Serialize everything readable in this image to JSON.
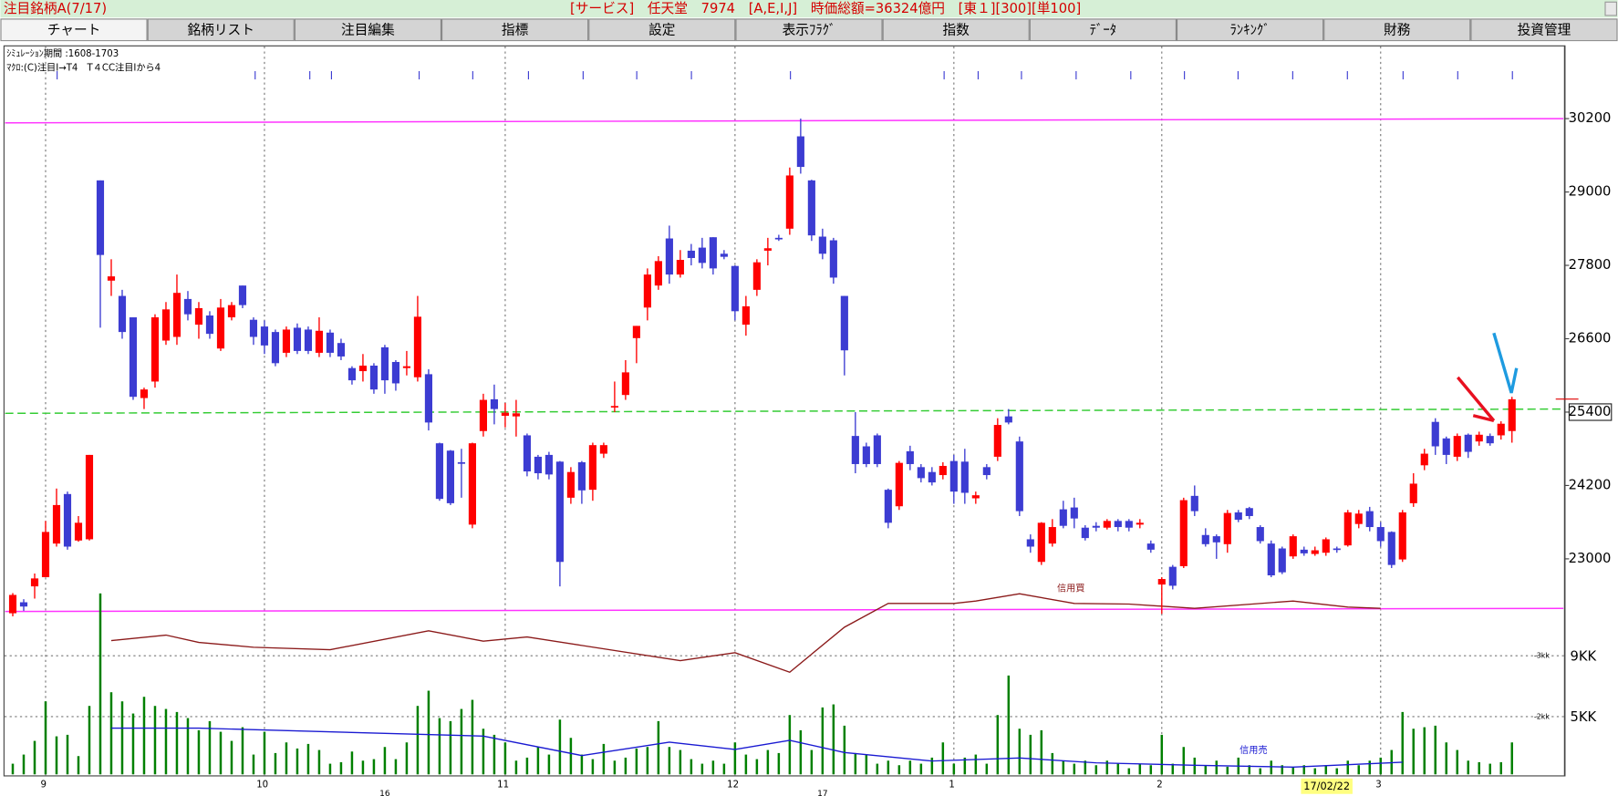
{
  "header": {
    "title": "注目銘柄A(7/17)",
    "info": "[サービス]　任天堂　7974　[A,E,I,J]　時価総額=36324億円　[東１][300][単100]"
  },
  "tabs": [
    "チャート",
    "銘柄リスト",
    "注目編集",
    "指標",
    "設定",
    "表示ﾌﾗｸﾞ",
    "指数",
    "ﾃﾞｰﾀ",
    "ﾗﾝｷﾝｸﾞ",
    "財務",
    "投資管理"
  ],
  "chart_data": {
    "type": "candlestick",
    "notes": [
      "ｼﾐｭﾚｰｼｮﾝ期間 :1608-1703",
      "ﾏｸﾛ:(C)注目I→T4　T４CC注目Iから4"
    ],
    "open": [
      22110,
      22290,
      22550,
      22700,
      23250,
      24060,
      23300,
      23320,
      29190,
      27550,
      27300,
      26950,
      25630,
      25900,
      26570,
      26630,
      27250,
      26830,
      26980,
      26440,
      26950,
      27470,
      26910,
      26800,
      26710,
      26370,
      26780,
      26750,
      26370,
      26700,
      26530,
      26120,
      26070,
      26160,
      26460,
      26220,
      26120,
      25970,
      26020,
      24890,
      24770,
      24580,
      23560,
      25090,
      25610,
      25340,
      25330,
      25020,
      24670,
      24700,
      24590,
      24000,
      24580,
      24130,
      24720,
      25480,
      25680,
      26610,
      27110,
      27470,
      28240,
      27650,
      28040,
      28090,
      28260,
      27990,
      27790,
      26830,
      27400,
      28040,
      28250,
      28400,
      29910,
      29190,
      28270,
      28210,
      27300,
      25010,
      24840,
      25020,
      24130,
      23860,
      24760,
      24500,
      24420,
      24370,
      24600,
      24590,
      23990,
      24500,
      24670,
      25330,
      24920,
      23320,
      22950,
      23250,
      23810,
      23840,
      23510,
      23540,
      23510,
      23620,
      23620,
      23560,
      23250,
      22580,
      22870,
      22880,
      24030,
      23390,
      23370,
      23240,
      23760,
      23830,
      23520,
      23250,
      23170,
      23040,
      23150,
      23080,
      23100,
      23170,
      23220,
      23570,
      23780,
      23520,
      23440,
      22990,
      23910,
      24530,
      25240,
      24970,
      24670,
      25030,
      24920,
      25010,
      25020,
      25090
    ],
    "high": [
      22440,
      22340,
      22760,
      23620,
      24150,
      24100,
      23700,
      24700,
      29190,
      27900,
      27400,
      26950,
      25800,
      27000,
      27200,
      27650,
      27380,
      27200,
      27050,
      27250,
      27200,
      27470,
      26950,
      26900,
      26750,
      26800,
      26850,
      26800,
      26950,
      26750,
      26600,
      26150,
      26350,
      26200,
      26500,
      26250,
      26400,
      27300,
      26100,
      24900,
      24780,
      24800,
      24900,
      25700,
      25850,
      25550,
      25600,
      25050,
      24700,
      24750,
      24600,
      24500,
      24600,
      24900,
      24900,
      25900,
      26250,
      26810,
      27750,
      27950,
      28450,
      28050,
      28150,
      28250,
      28260,
      28050,
      27800,
      27300,
      27900,
      28250,
      28300,
      29400,
      30200,
      29200,
      28400,
      28250,
      27300,
      25400,
      24900,
      25050,
      24150,
      24600,
      24850,
      24550,
      24500,
      24580,
      24700,
      24800,
      24100,
      24550,
      25300,
      25450,
      25000,
      23400,
      23600,
      23650,
      23950,
      24000,
      23550,
      23600,
      23650,
      23650,
      23650,
      23650,
      23300,
      22700,
      22900,
      24000,
      24200,
      23500,
      23400,
      23800,
      23800,
      23850,
      23550,
      23300,
      23200,
      23400,
      23200,
      23200,
      23350,
      23200,
      23800,
      23800,
      23850,
      23600,
      23450,
      23800,
      24400,
      24800,
      25300,
      25000,
      25050,
      25050,
      25080,
      25050,
      25250,
      25650
    ],
    "low": [
      22060,
      22150,
      22350,
      22700,
      23200,
      23150,
      23280,
      23300,
      26780,
      27300,
      26600,
      25600,
      25450,
      25800,
      26500,
      26500,
      26900,
      26600,
      26600,
      26400,
      26900,
      27100,
      26500,
      26350,
      26150,
      26300,
      26350,
      26350,
      26300,
      26300,
      26250,
      25850,
      25900,
      25700,
      25700,
      25750,
      26000,
      25900,
      25100,
      23950,
      23880,
      24000,
      23500,
      25000,
      25200,
      25150,
      25000,
      24350,
      24300,
      24300,
      22550,
      23900,
      23900,
      23950,
      24650,
      25400,
      25600,
      26200,
      26900,
      27400,
      27500,
      27600,
      27800,
      27750,
      27650,
      27900,
      26900,
      26650,
      27300,
      27800,
      28200,
      28300,
      29300,
      28200,
      27900,
      27500,
      26000,
      24400,
      24500,
      24500,
      23500,
      23800,
      24450,
      24250,
      24200,
      24300,
      23900,
      23900,
      23900,
      24300,
      24600,
      25200,
      23700,
      23100,
      22900,
      23200,
      23500,
      23500,
      23300,
      23450,
      23480,
      23450,
      23450,
      23500,
      23100,
      22100,
      22500,
      22850,
      23700,
      23200,
      23000,
      23100,
      23600,
      23650,
      23250,
      22700,
      22750,
      23000,
      23050,
      23050,
      23050,
      23100,
      23200,
      23500,
      23450,
      23200,
      22850,
      22950,
      23850,
      24450,
      24700,
      24550,
      24600,
      24650,
      24850,
      24850,
      24950,
      24900
    ],
    "close": [
      22410,
      22220,
      22680,
      23440,
      23880,
      23200,
      23590,
      24700,
      27970,
      27620,
      26710,
      25650,
      25770,
      26950,
      27080,
      27350,
      27000,
      27100,
      26680,
      27110,
      27150,
      27150,
      26630,
      26490,
      26200,
      26750,
      26400,
      26400,
      26730,
      26370,
      26310,
      25920,
      26160,
      25770,
      25920,
      25870,
      26150,
      26960,
      25230,
      23980,
      23910,
      24560,
      24890,
      25600,
      25450,
      25390,
      25380,
      24430,
      24400,
      24380,
      22950,
      24420,
      24120,
      24860,
      24860,
      25500,
      26050,
      26810,
      27650,
      27870,
      27650,
      27890,
      27920,
      27840,
      27750,
      27940,
      27050,
      27130,
      27850,
      28080,
      28240,
      29270,
      29410,
      28290,
      27990,
      27600,
      26410,
      24550,
      24550,
      24550,
      23590,
      24570,
      24550,
      24320,
      24250,
      24520,
      24100,
      24080,
      24040,
      24370,
      25190,
      25230,
      23780,
      23200,
      23590,
      23520,
      23540,
      23660,
      23340,
      23510,
      23620,
      23520,
      23510,
      23590,
      23150,
      22670,
      22560,
      23960,
      23780,
      23240,
      23270,
      23750,
      23640,
      23700,
      23290,
      22730,
      22780,
      23370,
      23090,
      23140,
      23320,
      23150,
      23760,
      23740,
      23520,
      23290,
      22900,
      23760,
      24230,
      24720,
      24840,
      24700,
      25010,
      24750,
      25030,
      24890,
      25210,
      25610
    ],
    "up_color": "#ff0000",
    "down_color": "#3c3cd2",
    "ylim": [
      21000,
      31000
    ],
    "yticks": [
      23000,
      24200,
      25400,
      26600,
      27800,
      29000,
      30200
    ],
    "xticks": [
      {
        "value": 3,
        "label": "9"
      },
      {
        "value": 23,
        "label": "10"
      },
      {
        "value": 45,
        "label": "11"
      },
      {
        "value": 66,
        "label": "12"
      },
      {
        "value": 86,
        "label": "1"
      },
      {
        "value": 105,
        "label": "2"
      },
      {
        "value": 125,
        "label": "3"
      }
    ],
    "year_ticks": [
      {
        "value": 34,
        "label": "16"
      },
      {
        "value": 74,
        "label": "17"
      }
    ],
    "cursor_date": "17/02/22",
    "levels": [
      {
        "color": "#ff33ff",
        "x": [
          -0.7,
          141.7
        ],
        "values": [
          30130,
          30200
        ]
      },
      {
        "color": "#ff33ff",
        "x": [
          -0.7,
          141.7
        ],
        "values": [
          22140,
          22190
        ]
      },
      {
        "color": "#33cc33",
        "dashed": true,
        "x": [
          -0.7,
          141.7
        ],
        "values": [
          25380,
          25450
        ]
      }
    ],
    "volume": {
      "color": "#008000",
      "ylim": [
        1.2,
        14
      ],
      "yticks": [
        {
          "value": 9,
          "label": "9KK"
        },
        {
          "value": 5,
          "label": "5KK"
        }
      ],
      "values": [
        1.9,
        2.5,
        3.4,
        6.0,
        3.7,
        3.8,
        2.4,
        5.7,
        13.1,
        6.6,
        6.0,
        5.2,
        6.3,
        5.7,
        5.5,
        5.3,
        4.9,
        4.1,
        4.7,
        4.0,
        3.4,
        4.3,
        2.5,
        4.0,
        2.6,
        3.3,
        2.9,
        3.2,
        2.8,
        1.9,
        2.0,
        2.7,
        2.1,
        2.2,
        3.0,
        2.2,
        3.3,
        5.7,
        6.7,
        4.9,
        4.7,
        5.5,
        6.1,
        4.2,
        3.8,
        3.3,
        2.1,
        2.3,
        3.0,
        2.5,
        4.8,
        3.6,
        2.5,
        2.2,
        3.2,
        2.1,
        2.3,
        2.9,
        3.0,
        4.7,
        3.0,
        2.8,
        2.2,
        1.9,
        2.1,
        1.9,
        3.3,
        2.5,
        2.2,
        2.8,
        2.6,
        5.1,
        4.1,
        2.8,
        5.6,
        5.8,
        4.4,
        2.6,
        2.5,
        1.9,
        2.1,
        1.8,
        2.1,
        1.9,
        2.3,
        3.3,
        1.9,
        2.3,
        2.5,
        1.9,
        5.1,
        7.7,
        4.2,
        3.8,
        4.1,
        2.6,
        2.1,
        1.9,
        2.1,
        1.8,
        2.1,
        1.9,
        1.6,
        1.9,
        1.8,
        3.8,
        1.9,
        3.0,
        2.3,
        1.8,
        2.1,
        1.7,
        2.3,
        1.8,
        1.6,
        2.1,
        1.8,
        1.7,
        1.8,
        1.6,
        1.8,
        1.6,
        2.1,
        1.8,
        2.1,
        2.3,
        2.8,
        5.3,
        4.2,
        4.3,
        4.4,
        3.3,
        2.8,
        2.1,
        2.0,
        1.9,
        2.0,
        3.3
      ]
    },
    "credit": {
      "ylim": [
        1,
        4.5
      ],
      "yticks": [
        {
          "value": 3,
          "label": "-3kk"
        },
        {
          "value": 2,
          "label": "-2kk"
        }
      ],
      "series": [
        {
          "name": "信用買",
          "color": "#8b1a1a",
          "x": [
            9,
            14,
            17,
            22,
            29,
            38,
            43,
            47,
            52,
            61,
            66,
            71,
            76,
            80,
            86,
            88,
            92,
            97,
            102,
            108,
            117,
            122,
            125
          ],
          "values": [
            3.25,
            3.34,
            3.22,
            3.14,
            3.1,
            3.41,
            3.24,
            3.31,
            3.17,
            2.92,
            3.05,
            2.73,
            3.47,
            3.86,
            3.86,
            3.9,
            4.02,
            3.86,
            3.85,
            3.78,
            3.9,
            3.8,
            3.78
          ]
        },
        {
          "name": "信用売",
          "color": "#1a1ad2",
          "x": [
            9,
            17,
            43,
            52,
            60,
            66,
            71,
            76,
            84,
            92,
            99,
            108,
            117,
            127
          ],
          "values": [
            1.81,
            1.81,
            1.68,
            1.36,
            1.58,
            1.46,
            1.61,
            1.41,
            1.27,
            1.32,
            1.24,
            1.2,
            1.17,
            1.25
          ]
        }
      ]
    }
  }
}
